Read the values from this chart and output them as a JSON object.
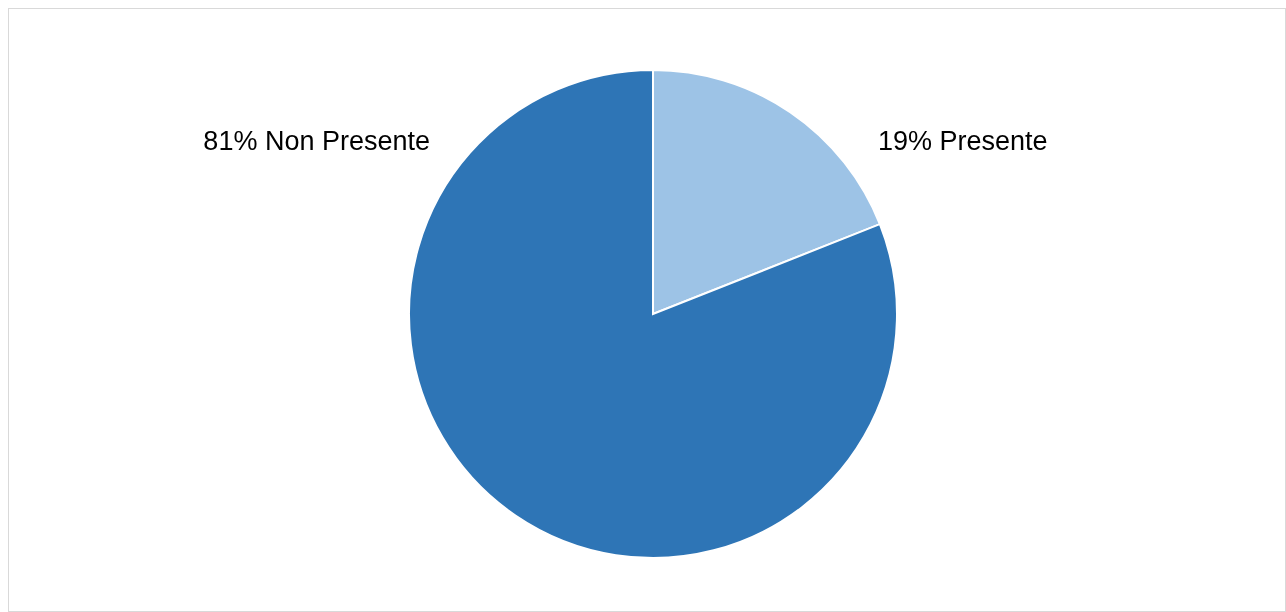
{
  "chart_data": {
    "type": "pie",
    "categories": [
      "Presente",
      "Non Presente"
    ],
    "values": [
      19,
      81
    ],
    "colors": [
      "#9dc3e6",
      "#2e75b6"
    ],
    "value_labels": [
      "19%",
      "81%"
    ],
    "legend": false
  }
}
